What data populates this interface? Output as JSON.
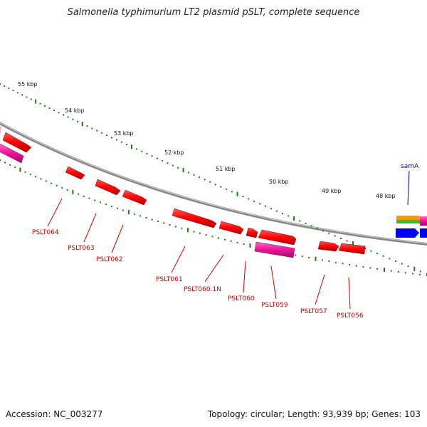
{
  "title": "Salmonella typhimurium LT2 plasmid pSLT, complete sequence",
  "footer": {
    "accession": "Accession: NC_003277",
    "summary": "Topology: circular; Length: 93,939 bp; Genes: 103"
  },
  "ticks": [
    {
      "label": "55 kbp"
    },
    {
      "label": "54 kbp"
    },
    {
      "label": "53 kbp"
    },
    {
      "label": "52 kbp"
    },
    {
      "label": "51 kbp"
    },
    {
      "label": "50 kbp"
    },
    {
      "label": "49 kbp"
    },
    {
      "label": "48 kbp"
    }
  ],
  "genes": [
    {
      "label": "PSLT064",
      "color": "#ff0000"
    },
    {
      "label": "PSLT063",
      "color": "#ff0000"
    },
    {
      "label": "PSLT062",
      "color": "#ff0000"
    },
    {
      "label": "PSLT061",
      "color": "#ff0000"
    },
    {
      "label": "PSLT060.1N",
      "color": "#ff0000"
    },
    {
      "label": "PSLT060",
      "color": "#ff0000"
    },
    {
      "label": "PSLT059",
      "color": "#ff0000"
    },
    {
      "label": "PSLT057",
      "color": "#ff0000"
    },
    {
      "label": "PSLT056",
      "color": "#ff0000"
    }
  ],
  "features": [
    {
      "label": "samA",
      "color": "#0000cc"
    }
  ],
  "colors": {
    "backbone": "#888888",
    "tick": "#1a7a1a",
    "gene_forward": "#ff0000",
    "gene_pink": "#ee1199",
    "cds_orange": "#ff9900",
    "cds_green": "#33bb33",
    "cds_blue": "#0000ee",
    "gene_label": "#cc0000",
    "feature_label": "#0000cc"
  }
}
